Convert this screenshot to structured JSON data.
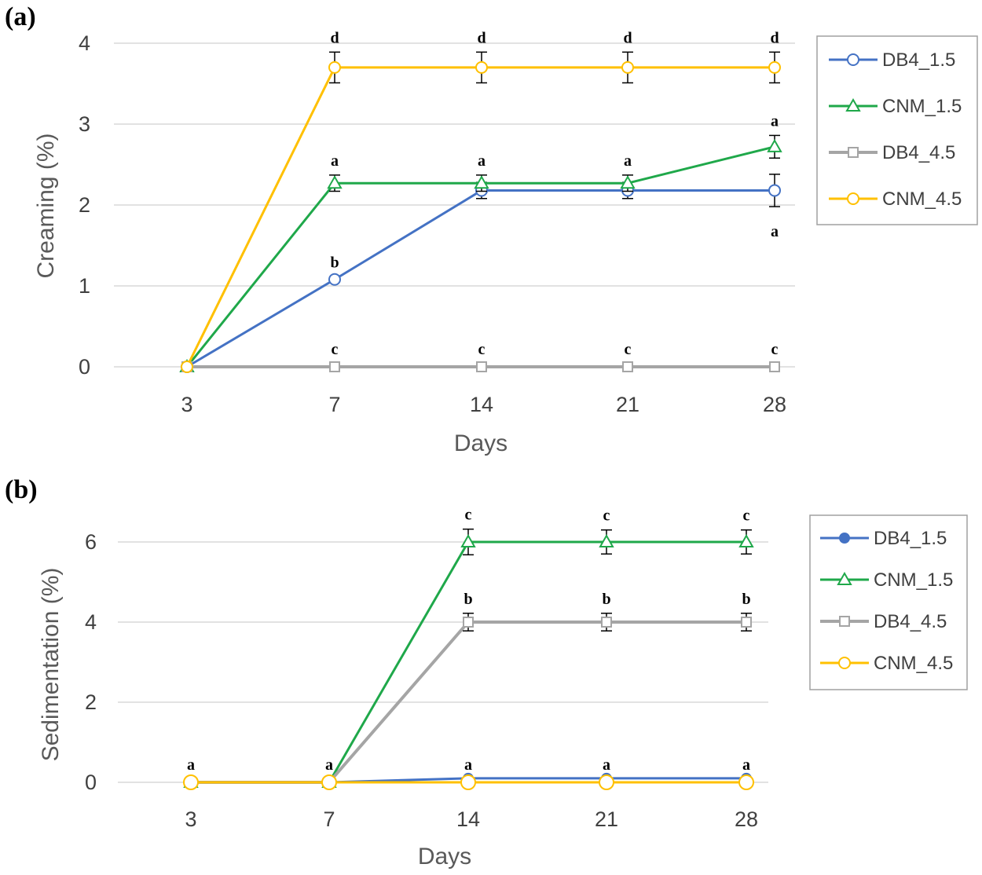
{
  "chart_data": [
    {
      "type": "line",
      "panel_label": "(a)",
      "xlabel": "Days",
      "ylabel": "Creaming (%)",
      "categories": [
        "3",
        "7",
        "14",
        "21",
        "28"
      ],
      "ylim": [
        0,
        4
      ],
      "yticks": [
        "0",
        "1",
        "2",
        "3",
        "4"
      ],
      "legend_position": "right",
      "series": [
        {
          "name": "DB4_1.5",
          "color": "#4472c4",
          "marker": "circle-open",
          "width": 3,
          "values": [
            0,
            1.08,
            2.18,
            2.18,
            2.18
          ],
          "errors": [
            0,
            0.03,
            0.1,
            0.1,
            0.2
          ],
          "letters": [
            "",
            "b",
            "",
            "",
            "a"
          ],
          "letter_pos": [
            "",
            "above",
            "",
            "",
            "below"
          ]
        },
        {
          "name": "CNM_1.5",
          "color": "#1fa84a",
          "marker": "triangle-open",
          "width": 3,
          "values": [
            0,
            2.27,
            2.27,
            2.27,
            2.72
          ],
          "errors": [
            0,
            0.1,
            0.1,
            0.1,
            0.14
          ],
          "letters": [
            "",
            "a",
            "a",
            "a",
            "a"
          ],
          "letter_pos": [
            "",
            "above",
            "above",
            "above",
            "above"
          ]
        },
        {
          "name": "DB4_4.5",
          "color": "#a5a5a5",
          "marker": "square-open",
          "width": 4,
          "values": [
            0,
            0,
            0,
            0,
            0
          ],
          "errors": [
            0,
            0,
            0,
            0,
            0
          ],
          "letters": [
            "",
            "c",
            "c",
            "c",
            "c"
          ],
          "letter_pos": [
            "",
            "above",
            "above",
            "above",
            "above"
          ]
        },
        {
          "name": "CNM_4.5",
          "color": "#ffc000",
          "marker": "circle-open",
          "width": 3,
          "values": [
            0,
            3.7,
            3.7,
            3.7,
            3.7
          ],
          "errors": [
            0,
            0.19,
            0.19,
            0.19,
            0.19
          ],
          "letters": [
            "",
            "d",
            "d",
            "d",
            "d"
          ],
          "letter_pos": [
            "",
            "above",
            "above",
            "above",
            "above"
          ]
        }
      ]
    },
    {
      "type": "line",
      "panel_label": "(b)",
      "xlabel": "Days",
      "ylabel": "Sedimentation (%)",
      "categories": [
        "3",
        "7",
        "14",
        "21",
        "28"
      ],
      "ylim": [
        0,
        6.5
      ],
      "yticks": [
        "0",
        "2",
        "4",
        "6"
      ],
      "legend_position": "right",
      "series": [
        {
          "name": "DB4_1.5",
          "color": "#4472c4",
          "marker": "circle-filled",
          "width": 3,
          "values": [
            0,
            0,
            0.1,
            0.1,
            0.1
          ],
          "errors": [
            0,
            0,
            0,
            0,
            0
          ],
          "letters": [
            "",
            "",
            "",
            "",
            ""
          ],
          "letter_pos": [
            "",
            "",
            "",
            "",
            ""
          ]
        },
        {
          "name": "CNM_1.5",
          "color": "#1fa84a",
          "marker": "triangle-open",
          "width": 3,
          "values": [
            0,
            0,
            6,
            6,
            6
          ],
          "errors": [
            0,
            0,
            0.32,
            0.3,
            0.3
          ],
          "letters": [
            "",
            "",
            "c",
            "c",
            "c"
          ],
          "letter_pos": [
            "",
            "",
            "above",
            "above",
            "above"
          ]
        },
        {
          "name": "DB4_4.5",
          "color": "#a5a5a5",
          "marker": "square-open",
          "width": 4,
          "values": [
            0,
            0,
            4,
            4,
            4
          ],
          "errors": [
            0,
            0,
            0.22,
            0.22,
            0.22
          ],
          "letters": [
            "",
            "",
            "b",
            "b",
            "b"
          ],
          "letter_pos": [
            "",
            "",
            "above",
            "above",
            "above"
          ]
        },
        {
          "name": "CNM_4.5",
          "color": "#ffc000",
          "marker": "circle-open",
          "width": 3,
          "values": [
            0,
            0,
            0,
            0,
            0
          ],
          "errors": [
            0,
            0,
            0,
            0,
            0
          ],
          "letters": [
            "a",
            "a",
            "a",
            "a",
            "a"
          ],
          "letter_pos": [
            "above",
            "above",
            "above",
            "above",
            "above"
          ]
        }
      ]
    }
  ]
}
